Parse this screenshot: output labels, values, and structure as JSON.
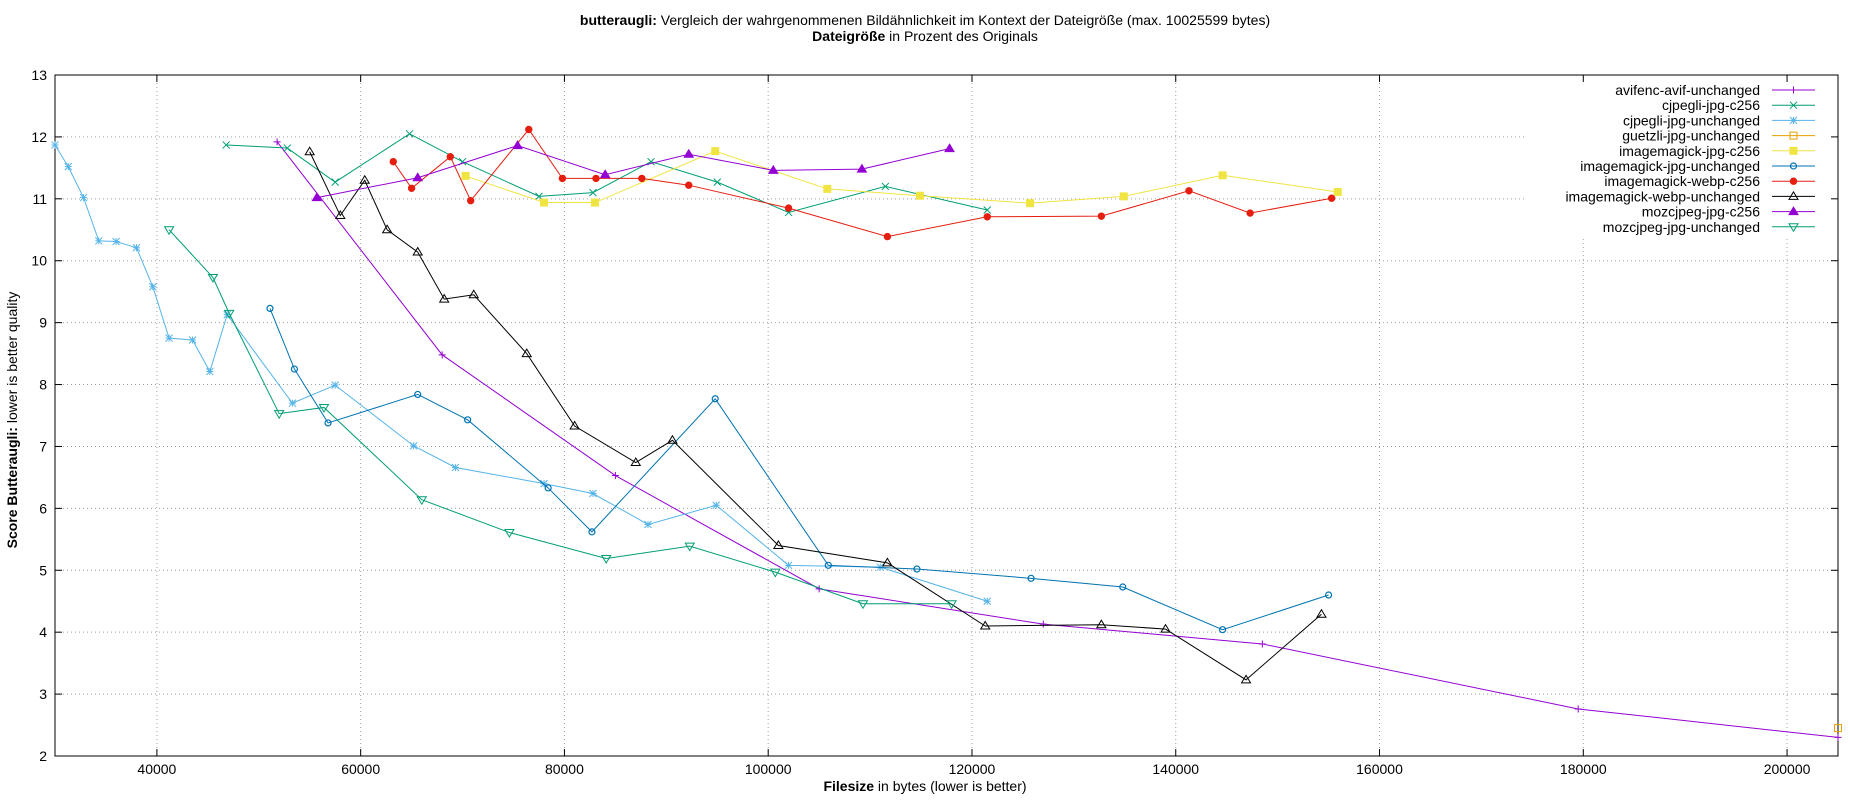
{
  "chart_data": {
    "type": "line",
    "title": {
      "bold": "butteraugli:",
      "rest": " Vergleich der wahrgenommenen Bildähnlichkeit im Kontext der Dateigröße (max. 10025599 bytes)"
    },
    "subtitle": {
      "bold": "Dateigröße",
      "rest": " in Prozent des Originals"
    },
    "xlabel": {
      "bold": "Filesize",
      "rest": " in bytes (lower is better)"
    },
    "ylabel": {
      "bold": "Score Butteraugli:",
      "rest": " lower is better quality"
    },
    "xlim": [
      30000,
      205000
    ],
    "ylim": [
      2,
      13
    ],
    "xticks": [
      "40000",
      "60000",
      "80000",
      "100000",
      "120000",
      "140000",
      "160000",
      "180000",
      "200000"
    ],
    "xtick_values": [
      40000,
      60000,
      80000,
      100000,
      120000,
      140000,
      160000,
      180000,
      200000
    ],
    "yticks": [
      "2",
      "3",
      "4",
      "5",
      "6",
      "7",
      "8",
      "9",
      "10",
      "11",
      "12",
      "13"
    ],
    "ytick_values": [
      2,
      3,
      4,
      5,
      6,
      7,
      8,
      9,
      10,
      11,
      12,
      13
    ],
    "grid": true,
    "legend_position": "top-right",
    "series": [
      {
        "name": "avifenc-avif-unchanged",
        "color": "#9400d3",
        "marker": "plus",
        "points": [
          [
            51800,
            11.92
          ],
          [
            68000,
            8.48
          ],
          [
            85000,
            6.53
          ],
          [
            105000,
            4.7
          ],
          [
            127000,
            4.13
          ],
          [
            148500,
            3.81
          ],
          [
            179500,
            2.76
          ],
          [
            205000,
            2.3
          ]
        ]
      },
      {
        "name": "cjpegli-jpg-c256",
        "color": "#009e73",
        "marker": "cross",
        "points": [
          [
            46800,
            11.87
          ],
          [
            52800,
            11.82
          ],
          [
            57500,
            11.27
          ],
          [
            64800,
            12.05
          ],
          [
            70000,
            11.6
          ],
          [
            77500,
            11.04
          ],
          [
            82800,
            11.1
          ],
          [
            88500,
            11.6
          ],
          [
            95000,
            11.27
          ],
          [
            102000,
            10.78
          ],
          [
            111500,
            11.2
          ],
          [
            121500,
            10.82
          ]
        ]
      },
      {
        "name": "cjpegli-jpg-unchanged",
        "color": "#56b4e9",
        "marker": "star",
        "points": [
          [
            30000,
            11.87
          ],
          [
            31300,
            11.52
          ],
          [
            32800,
            11.02
          ],
          [
            34300,
            10.32
          ],
          [
            36000,
            10.31
          ],
          [
            38000,
            10.21
          ],
          [
            39600,
            9.58
          ],
          [
            41200,
            8.75
          ],
          [
            43500,
            8.72
          ],
          [
            45200,
            8.21
          ],
          [
            46900,
            9.13
          ],
          [
            53300,
            7.7
          ],
          [
            57500,
            7.99
          ],
          [
            65200,
            7.01
          ],
          [
            69300,
            6.66
          ],
          [
            78000,
            6.4
          ],
          [
            82800,
            6.24
          ],
          [
            88200,
            5.74
          ],
          [
            94900,
            6.05
          ],
          [
            102000,
            5.08
          ],
          [
            111000,
            5.05
          ],
          [
            121500,
            4.5
          ]
        ]
      },
      {
        "name": "guetzli-jpg-unchanged",
        "color": "#e69f00",
        "marker": "square-open",
        "points": [
          [
            205000,
            2.45
          ]
        ]
      },
      {
        "name": "imagemagick-jpg-c256",
        "color": "#f0e442",
        "marker": "square-filled",
        "points": [
          [
            70300,
            11.37
          ],
          [
            78000,
            10.94
          ],
          [
            83000,
            10.94
          ],
          [
            94800,
            11.77
          ],
          [
            105800,
            11.16
          ],
          [
            114900,
            11.05
          ],
          [
            125700,
            10.93
          ],
          [
            134900,
            11.04
          ],
          [
            144600,
            11.38
          ],
          [
            155900,
            11.11
          ]
        ]
      },
      {
        "name": "imagemagick-jpg-unchanged",
        "color": "#0072b2",
        "marker": "circle-open",
        "points": [
          [
            51100,
            9.23
          ],
          [
            53500,
            8.25
          ],
          [
            56800,
            7.38
          ],
          [
            65600,
            7.84
          ],
          [
            70500,
            7.43
          ],
          [
            78400,
            6.33
          ],
          [
            82700,
            5.62
          ],
          [
            94800,
            7.77
          ],
          [
            105900,
            5.08
          ],
          [
            114600,
            5.02
          ],
          [
            125800,
            4.87
          ],
          [
            134800,
            4.73
          ],
          [
            144600,
            4.04
          ],
          [
            155000,
            4.6
          ]
        ]
      },
      {
        "name": "imagemagick-webp-c256",
        "color": "#e51e10",
        "marker": "circle-filled",
        "points": [
          [
            63200,
            11.6
          ],
          [
            65000,
            11.17
          ],
          [
            68800,
            11.68
          ],
          [
            70800,
            10.97
          ],
          [
            76500,
            12.12
          ],
          [
            79800,
            11.33
          ],
          [
            83100,
            11.33
          ],
          [
            87600,
            11.33
          ],
          [
            92200,
            11.22
          ],
          [
            102000,
            10.85
          ],
          [
            111700,
            10.39
          ],
          [
            121500,
            10.71
          ],
          [
            132700,
            10.72
          ],
          [
            141300,
            11.13
          ],
          [
            147300,
            10.77
          ],
          [
            155300,
            11.01
          ]
        ]
      },
      {
        "name": "imagemagick-webp-unchanged",
        "color": "#000000",
        "marker": "triangle-open",
        "points": [
          [
            55000,
            11.76
          ],
          [
            58000,
            10.73
          ],
          [
            60400,
            11.3
          ],
          [
            62600,
            10.5
          ],
          [
            65600,
            10.14
          ],
          [
            68200,
            9.38
          ],
          [
            71100,
            9.45
          ],
          [
            76300,
            8.5
          ],
          [
            81000,
            7.33
          ],
          [
            87000,
            6.74
          ],
          [
            90600,
            7.1
          ],
          [
            101000,
            5.4
          ],
          [
            111700,
            5.12
          ],
          [
            121300,
            4.1
          ],
          [
            132700,
            4.12
          ],
          [
            139000,
            4.05
          ],
          [
            146900,
            3.23
          ],
          [
            154300,
            4.29
          ]
        ]
      },
      {
        "name": "mozcjpeg-jpg-c256",
        "color": "#9400d3",
        "marker": "triangle-filled",
        "points": [
          [
            55700,
            11.02
          ],
          [
            65600,
            11.34
          ],
          [
            75400,
            11.86
          ],
          [
            84000,
            11.39
          ],
          [
            92200,
            11.72
          ],
          [
            100500,
            11.46
          ],
          [
            109200,
            11.48
          ],
          [
            117800,
            11.81
          ]
        ]
      },
      {
        "name": "mozcjpeg-jpg-unchanged",
        "color": "#009e73",
        "marker": "triangle-down-open",
        "points": [
          [
            41200,
            10.5
          ],
          [
            45500,
            9.73
          ],
          [
            47100,
            9.15
          ],
          [
            52000,
            7.53
          ],
          [
            56400,
            7.63
          ],
          [
            66000,
            6.14
          ],
          [
            74600,
            5.61
          ],
          [
            84100,
            5.19
          ],
          [
            92300,
            5.39
          ],
          [
            100700,
            4.97
          ],
          [
            109300,
            4.46
          ],
          [
            118000,
            4.46
          ]
        ]
      }
    ]
  }
}
